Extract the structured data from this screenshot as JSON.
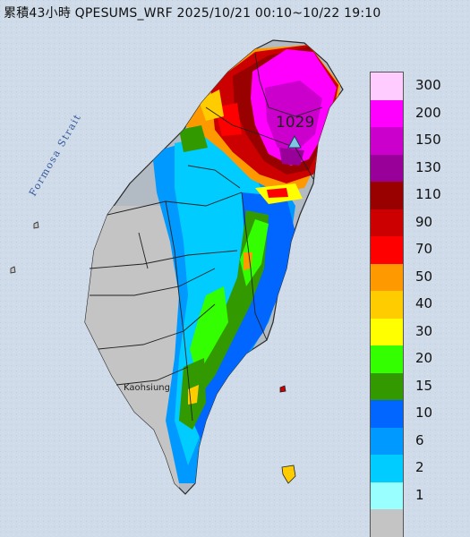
{
  "header": {
    "title": "累積43小時 QPESUMS_WRF 2025/10/21 00:10~10/22 19:10"
  },
  "map": {
    "strait_label": "Formosa Strait",
    "city_label": "Kaohsiung",
    "max_station_value": "1029",
    "colors": {
      "sea": "#cfdbe8",
      "land_base": "#a9b3bd"
    }
  },
  "legend": {
    "bins": [
      {
        "label": "300",
        "color": "#ffccff"
      },
      {
        "label": "200",
        "color": "#ff00ff"
      },
      {
        "label": "150",
        "color": "#cc00cc"
      },
      {
        "label": "130",
        "color": "#990099"
      },
      {
        "label": "110",
        "color": "#990000"
      },
      {
        "label": "90",
        "color": "#cc0000"
      },
      {
        "label": "70",
        "color": "#ff0000"
      },
      {
        "label": "50",
        "color": "#ff9900"
      },
      {
        "label": "40",
        "color": "#ffcc00"
      },
      {
        "label": "30",
        "color": "#ffff00"
      },
      {
        "label": "20",
        "color": "#33ff00"
      },
      {
        "label": "15",
        "color": "#339900"
      },
      {
        "label": "10",
        "color": "#0066ff"
      },
      {
        "label": "6",
        "color": "#0099ff"
      },
      {
        "label": "2",
        "color": "#00ccff"
      },
      {
        "label": "1",
        "color": "#99ffff"
      },
      {
        "label": "",
        "color": "#c4c4c4"
      }
    ]
  }
}
